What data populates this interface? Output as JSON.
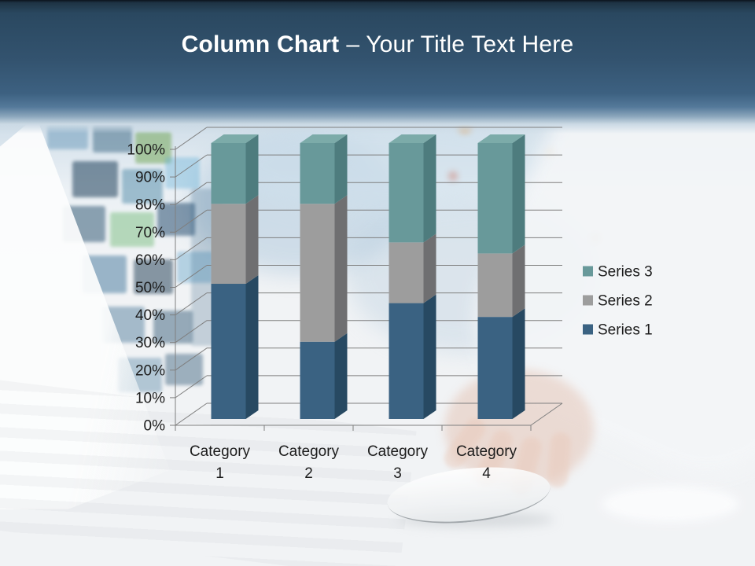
{
  "header": {
    "title_bold": "Column Chart",
    "title_rest": "– Your Title Text Here",
    "text_color": "#ffffff",
    "bg_color": "#35587a"
  },
  "chart_data": {
    "type": "bar",
    "subtype": "3d-100%-stacked-column",
    "categories": [
      "Category 1",
      "Category 2",
      "Category 3",
      "Category 4"
    ],
    "series": [
      {
        "name": "Series 1",
        "color": "#3a6282",
        "side_color": "#274962",
        "top_color": "#4a7292",
        "values": [
          49,
          28,
          42,
          37
        ]
      },
      {
        "name": "Series 2",
        "color": "#9d9d9d",
        "side_color": "#6f6f71",
        "top_color": "#ababab",
        "values": [
          29,
          50,
          22,
          23
        ]
      },
      {
        "name": "Series 3",
        "color": "#68999a",
        "side_color": "#4e7c7e",
        "top_color": "#7caba9",
        "values": [
          22,
          22,
          36,
          40
        ]
      }
    ],
    "y_ticks": [
      "0%",
      "10%",
      "20%",
      "30%",
      "40%",
      "50%",
      "60%",
      "70%",
      "80%",
      "90%",
      "100%"
    ],
    "ylim": [
      0,
      100
    ],
    "grid": true,
    "gridline_color": "#7f7f7f",
    "axis_color": "#7f7f7f",
    "text_color": "#1c1c1c",
    "legend_position": "right",
    "legend_order": [
      "Series 3",
      "Series 2",
      "Series 1"
    ]
  }
}
